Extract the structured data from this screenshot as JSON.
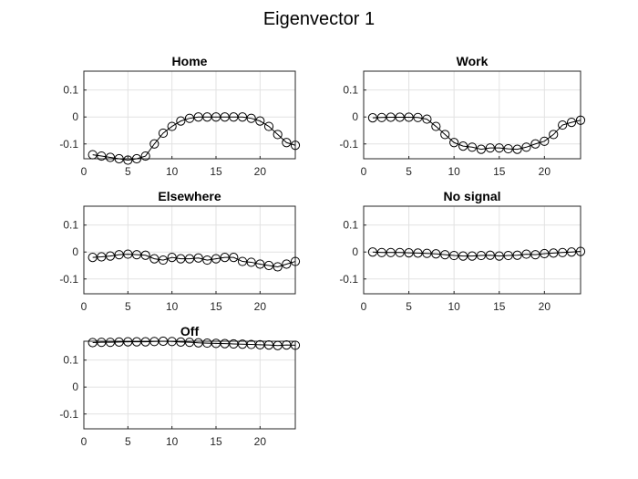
{
  "figure": {
    "title": "Eigenvector 1"
  },
  "chart_data": [
    {
      "type": "scatter",
      "title": "Home",
      "x": [
        1,
        2,
        3,
        4,
        5,
        6,
        7,
        8,
        9,
        10,
        11,
        12,
        13,
        14,
        15,
        16,
        17,
        18,
        19,
        20,
        21,
        22,
        23,
        24
      ],
      "values": [
        -0.14,
        -0.145,
        -0.15,
        -0.155,
        -0.16,
        -0.155,
        -0.145,
        -0.1,
        -0.06,
        -0.035,
        -0.015,
        -0.005,
        0,
        0,
        0,
        0,
        0,
        0,
        -0.005,
        -0.015,
        -0.035,
        -0.065,
        -0.095,
        -0.105
      ],
      "xlim": [
        0,
        24
      ],
      "ylim": [
        -0.155,
        0.17
      ],
      "xticks": [
        0,
        5,
        10,
        15,
        20
      ],
      "yticks": [
        -0.1,
        0,
        0.1
      ],
      "ytick_labels": [
        "-0.1",
        "0",
        "0.1"
      ],
      "grid": true,
      "marker": "open-circle"
    },
    {
      "type": "scatter",
      "title": "Work",
      "x": [
        1,
        2,
        3,
        4,
        5,
        6,
        7,
        8,
        9,
        10,
        11,
        12,
        13,
        14,
        15,
        16,
        17,
        18,
        19,
        20,
        21,
        22,
        23,
        24
      ],
      "values": [
        -0.003,
        -0.002,
        -0.001,
        -0.001,
        -0.001,
        -0.002,
        -0.008,
        -0.035,
        -0.065,
        -0.095,
        -0.108,
        -0.112,
        -0.12,
        -0.115,
        -0.115,
        -0.118,
        -0.12,
        -0.112,
        -0.1,
        -0.09,
        -0.065,
        -0.03,
        -0.02,
        -0.012
      ],
      "xlim": [
        0,
        24
      ],
      "ylim": [
        -0.155,
        0.17
      ],
      "xticks": [
        0,
        5,
        10,
        15,
        20
      ],
      "yticks": [
        -0.1,
        0,
        0.1
      ],
      "ytick_labels": [
        "-0.1",
        "0",
        "0.1"
      ],
      "grid": true,
      "marker": "open-circle"
    },
    {
      "type": "scatter",
      "title": "Elsewhere",
      "x": [
        1,
        2,
        3,
        4,
        5,
        6,
        7,
        8,
        9,
        10,
        11,
        12,
        13,
        14,
        15,
        16,
        17,
        18,
        19,
        20,
        21,
        22,
        23,
        24
      ],
      "values": [
        -0.02,
        -0.018,
        -0.015,
        -0.01,
        -0.008,
        -0.01,
        -0.012,
        -0.025,
        -0.03,
        -0.02,
        -0.025,
        -0.025,
        -0.022,
        -0.03,
        -0.025,
        -0.02,
        -0.02,
        -0.035,
        -0.038,
        -0.045,
        -0.05,
        -0.055,
        -0.045,
        -0.035
      ],
      "xlim": [
        0,
        24
      ],
      "ylim": [
        -0.155,
        0.17
      ],
      "xticks": [
        0,
        5,
        10,
        15,
        20
      ],
      "yticks": [
        -0.1,
        0,
        0.1
      ],
      "ytick_labels": [
        "-0.1",
        "0",
        "0.1"
      ],
      "grid": true,
      "marker": "open-circle"
    },
    {
      "type": "scatter",
      "title": "No signal",
      "x": [
        1,
        2,
        3,
        4,
        5,
        6,
        7,
        8,
        9,
        10,
        11,
        12,
        13,
        14,
        15,
        16,
        17,
        18,
        19,
        20,
        21,
        22,
        23,
        24
      ],
      "values": [
        0,
        -0.002,
        -0.002,
        -0.002,
        -0.003,
        -0.004,
        -0.005,
        -0.007,
        -0.01,
        -0.013,
        -0.015,
        -0.015,
        -0.013,
        -0.012,
        -0.015,
        -0.013,
        -0.012,
        -0.008,
        -0.01,
        -0.006,
        -0.004,
        -0.002,
        0,
        0.002
      ],
      "xlim": [
        0,
        24
      ],
      "ylim": [
        -0.155,
        0.17
      ],
      "xticks": [
        0,
        5,
        10,
        15,
        20
      ],
      "yticks": [
        -0.1,
        0,
        0.1
      ],
      "ytick_labels": [
        "-0.1",
        "0",
        "0.1"
      ],
      "grid": true,
      "marker": "open-circle"
    },
    {
      "type": "scatter",
      "title": "Off",
      "x": [
        1,
        2,
        3,
        4,
        5,
        6,
        7,
        8,
        9,
        10,
        11,
        12,
        13,
        14,
        15,
        16,
        17,
        18,
        19,
        20,
        21,
        22,
        23,
        24
      ],
      "values": [
        0.165,
        0.166,
        0.166,
        0.167,
        0.168,
        0.168,
        0.168,
        0.169,
        0.17,
        0.169,
        0.167,
        0.166,
        0.164,
        0.163,
        0.162,
        0.161,
        0.16,
        0.159,
        0.158,
        0.157,
        0.156,
        0.154,
        0.156,
        0.155
      ],
      "xlim": [
        0,
        24
      ],
      "ylim": [
        -0.155,
        0.17
      ],
      "xticks": [
        0,
        5,
        10,
        15,
        20
      ],
      "yticks": [
        -0.1,
        0,
        0.1
      ],
      "ytick_labels": [
        "-0.1",
        "0",
        "0.1"
      ],
      "grid": true,
      "marker": "open-circle"
    }
  ]
}
